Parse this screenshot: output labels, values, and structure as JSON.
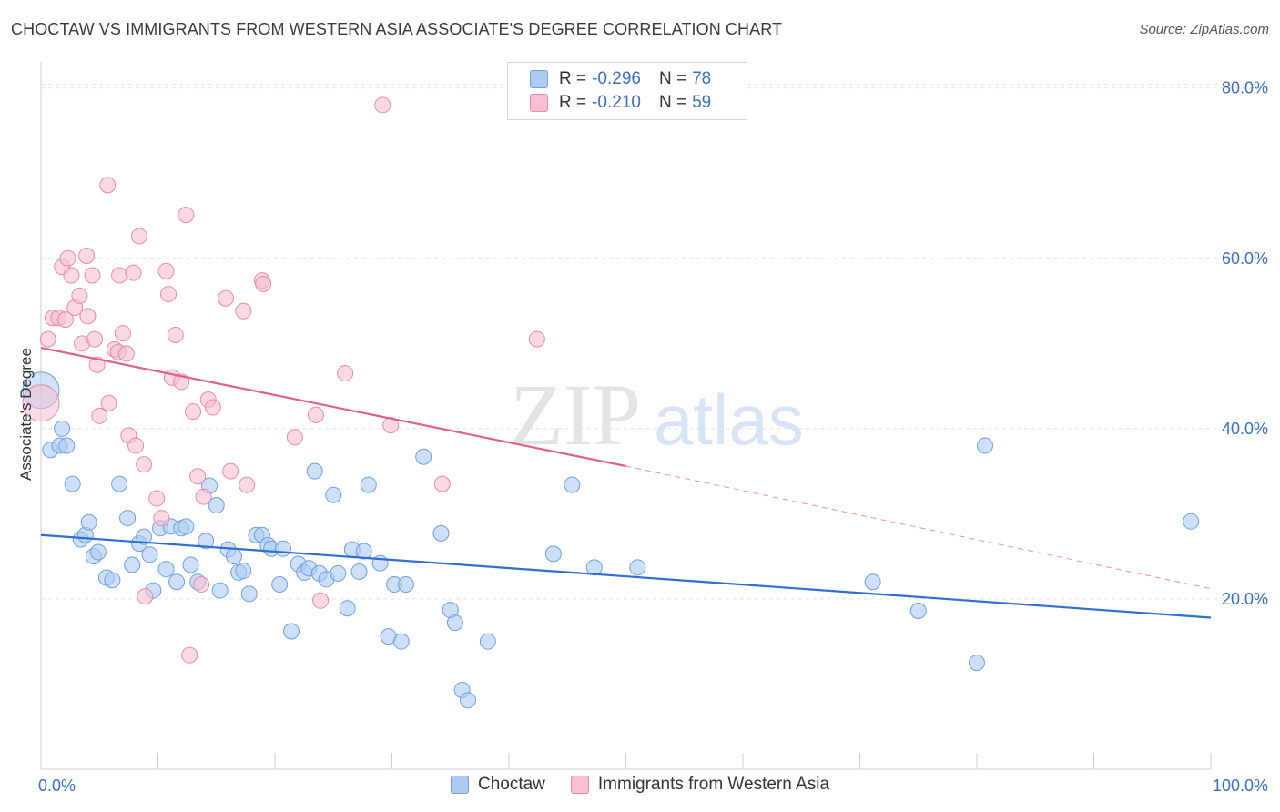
{
  "title": "CHOCTAW VS IMMIGRANTS FROM WESTERN ASIA ASSOCIATE'S DEGREE CORRELATION CHART",
  "source": "Source: ZipAtlas.com",
  "watermark": {
    "zip": "ZIP",
    "atlas": "atlas"
  },
  "legend": {
    "rows": [
      {
        "r_label": "R =",
        "r_value": "-0.296",
        "n_label": "N =",
        "n_value": "78",
        "color": "#aecbf2",
        "border": "#6f9fe0"
      },
      {
        "r_label": "R =",
        "r_value": "-0.210",
        "n_label": "N =",
        "n_value": "59",
        "color": "#f7bfd0",
        "border": "#e88aa8"
      }
    ]
  },
  "bottom_legend": [
    "Choctaw",
    "Immigrants from Western Asia"
  ],
  "chart_data": {
    "type": "scatter",
    "ylabel": "Associate's Degree",
    "xlim": [
      0,
      100
    ],
    "ylim": [
      0,
      82
    ],
    "x_tick_labels": [
      {
        "x": 0,
        "label": "0.0%"
      },
      {
        "x": 100,
        "label": "100.0%"
      }
    ],
    "y_tick_labels": [
      {
        "y": 20,
        "label": "20.0%"
      },
      {
        "y": 40,
        "label": "40.0%"
      },
      {
        "y": 60,
        "label": "60.0%"
      },
      {
        "y": 80,
        "label": "80.0%"
      }
    ],
    "grid": true,
    "series": [
      {
        "name": "Choctaw",
        "color": "#aecbf2",
        "stroke": "#6f9fe0",
        "line_color": "#2f6fd0",
        "trend": {
          "x0": 0,
          "y0": 27.5,
          "x1": 100,
          "y1": 17.8
        },
        "points": [
          [
            0,
            44.5
          ],
          [
            0.8,
            37.5
          ],
          [
            1.6,
            38
          ],
          [
            1.8,
            40
          ],
          [
            2.2,
            38
          ],
          [
            2.7,
            33.5
          ],
          [
            3.4,
            27
          ],
          [
            3.8,
            27.5
          ],
          [
            4.1,
            29
          ],
          [
            4.5,
            25
          ],
          [
            4.9,
            25.5
          ],
          [
            5.6,
            22.5
          ],
          [
            6.1,
            22.2
          ],
          [
            6.7,
            33.5
          ],
          [
            7.4,
            29.5
          ],
          [
            7.8,
            24
          ],
          [
            8.4,
            26.5
          ],
          [
            8.8,
            27.3
          ],
          [
            9.3,
            25.2
          ],
          [
            9.6,
            21
          ],
          [
            10.2,
            28.3
          ],
          [
            10.7,
            23.5
          ],
          [
            11.1,
            28.5
          ],
          [
            11.6,
            22
          ],
          [
            12.0,
            28.3
          ],
          [
            12.4,
            28.5
          ],
          [
            12.8,
            24
          ],
          [
            13.4,
            22
          ],
          [
            14.1,
            26.8
          ],
          [
            14.4,
            33.3
          ],
          [
            15.0,
            31
          ],
          [
            15.3,
            21
          ],
          [
            16.0,
            25.8
          ],
          [
            16.5,
            25
          ],
          [
            16.9,
            23.1
          ],
          [
            17.3,
            23.3
          ],
          [
            17.8,
            20.6
          ],
          [
            18.4,
            27.5
          ],
          [
            18.9,
            27.5
          ],
          [
            19.4,
            26.3
          ],
          [
            19.7,
            25.9
          ],
          [
            20.4,
            21.7
          ],
          [
            20.7,
            25.9
          ],
          [
            21.4,
            16.2
          ],
          [
            22.0,
            24.1
          ],
          [
            22.5,
            23.1
          ],
          [
            22.9,
            23.6
          ],
          [
            23.4,
            35
          ],
          [
            23.8,
            23
          ],
          [
            24.4,
            22.3
          ],
          [
            25.0,
            32.2
          ],
          [
            25.4,
            23
          ],
          [
            26.2,
            18.9
          ],
          [
            26.6,
            25.8
          ],
          [
            27.2,
            23.2
          ],
          [
            27.6,
            25.6
          ],
          [
            28.0,
            33.4
          ],
          [
            29.0,
            24.2
          ],
          [
            29.7,
            15.6
          ],
          [
            30.2,
            21.7
          ],
          [
            30.8,
            15
          ],
          [
            31.2,
            21.7
          ],
          [
            32.7,
            36.7
          ],
          [
            34.2,
            27.7
          ],
          [
            35.0,
            18.7
          ],
          [
            35.4,
            17.2
          ],
          [
            36.0,
            9.3
          ],
          [
            36.5,
            8.1
          ],
          [
            38.2,
            15
          ],
          [
            43.8,
            25.3
          ],
          [
            45.4,
            33.4
          ],
          [
            47.3,
            23.7
          ],
          [
            51.0,
            23.7
          ],
          [
            71.1,
            22
          ],
          [
            75.0,
            18.6
          ],
          [
            80.0,
            12.5
          ],
          [
            80.7,
            38
          ],
          [
            98.3,
            29.1
          ]
        ]
      },
      {
        "name": "Immigrants from Western Asia",
        "color": "#f7bfd0",
        "stroke": "#e88aa8",
        "line_color": "#e0608a",
        "trend": {
          "x0": 0,
          "y0": 49.5,
          "x1": 50,
          "y1": 35.6
        },
        "trend_dashed_to": {
          "x1": 100,
          "y1": 21.2
        },
        "points": [
          [
            0,
            43
          ],
          [
            0.6,
            50.5
          ],
          [
            1.0,
            53
          ],
          [
            1.5,
            53
          ],
          [
            1.8,
            59
          ],
          [
            2.1,
            52.8
          ],
          [
            2.3,
            60
          ],
          [
            2.6,
            58
          ],
          [
            2.9,
            54.2
          ],
          [
            3.3,
            55.6
          ],
          [
            3.5,
            50
          ],
          [
            3.9,
            60.3
          ],
          [
            4.0,
            53.2
          ],
          [
            4.4,
            58
          ],
          [
            4.6,
            50.5
          ],
          [
            4.8,
            47.5
          ],
          [
            5.0,
            41.5
          ],
          [
            5.7,
            68.6
          ],
          [
            5.8,
            43
          ],
          [
            6.3,
            49.3
          ],
          [
            6.6,
            49
          ],
          [
            6.7,
            58
          ],
          [
            7.0,
            51.2
          ],
          [
            7.3,
            48.8
          ],
          [
            7.5,
            39.2
          ],
          [
            7.9,
            58.3
          ],
          [
            8.1,
            38
          ],
          [
            8.4,
            62.6
          ],
          [
            8.8,
            35.8
          ],
          [
            8.9,
            20.3
          ],
          [
            9.9,
            31.8
          ],
          [
            10.3,
            29.5
          ],
          [
            10.7,
            58.5
          ],
          [
            10.9,
            55.8
          ],
          [
            11.2,
            46
          ],
          [
            11.5,
            51
          ],
          [
            12.0,
            45.5
          ],
          [
            12.4,
            65.1
          ],
          [
            12.7,
            13.4
          ],
          [
            13.0,
            42
          ],
          [
            13.4,
            34.4
          ],
          [
            13.7,
            21.7
          ],
          [
            13.9,
            32
          ],
          [
            14.3,
            43.4
          ],
          [
            14.7,
            42.5
          ],
          [
            15.8,
            55.3
          ],
          [
            16.2,
            35
          ],
          [
            17.3,
            53.8
          ],
          [
            17.6,
            33.4
          ],
          [
            18.9,
            57.4
          ],
          [
            19.0,
            57
          ],
          [
            21.7,
            39
          ],
          [
            23.5,
            41.6
          ],
          [
            23.9,
            19.8
          ],
          [
            26.0,
            46.5
          ],
          [
            29.2,
            78
          ],
          [
            29.9,
            40.4
          ],
          [
            34.3,
            33.5
          ],
          [
            42.4,
            50.5
          ]
        ]
      }
    ]
  }
}
